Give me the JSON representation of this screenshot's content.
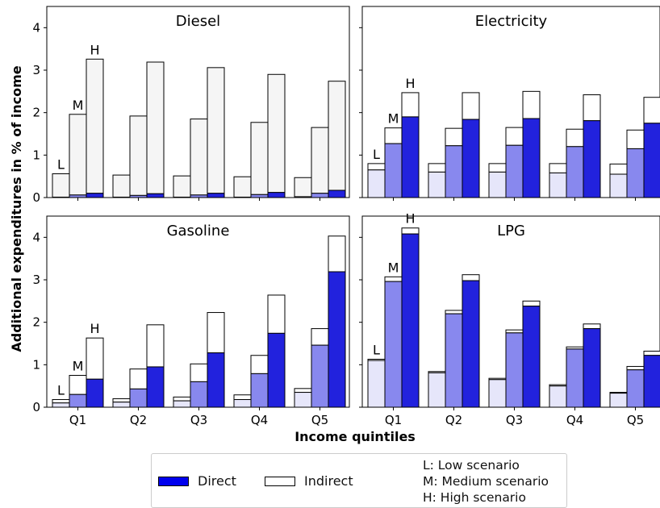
{
  "chart_data": {
    "type": "bar",
    "xlabel": "Income quintiles",
    "ylabel": "Additional expenditures in % of income",
    "categories": [
      "Q1",
      "Q2",
      "Q3",
      "Q4",
      "Q5"
    ],
    "scenarios": [
      "L",
      "M",
      "H"
    ],
    "ylim": [
      0,
      4.5
    ],
    "yticks": [
      0,
      1,
      2,
      3,
      4
    ],
    "grid": false,
    "legend_position": "bottom-center",
    "panels": [
      {
        "title": "Diesel",
        "direct": [
          [
            0.01,
            0.06,
            0.1
          ],
          [
            0.01,
            0.05,
            0.09
          ],
          [
            0.01,
            0.06,
            0.1
          ],
          [
            0.01,
            0.07,
            0.12
          ],
          [
            0.02,
            0.1,
            0.17
          ]
        ],
        "total": [
          [
            0.56,
            1.96,
            3.26
          ],
          [
            0.53,
            1.92,
            3.19
          ],
          [
            0.51,
            1.85,
            3.06
          ],
          [
            0.49,
            1.77,
            2.9
          ],
          [
            0.47,
            1.65,
            2.74
          ]
        ],
        "scenario_labels": true
      },
      {
        "title": "Electricity",
        "direct": [
          [
            0.65,
            1.27,
            1.9
          ],
          [
            0.6,
            1.22,
            1.84
          ],
          [
            0.6,
            1.23,
            1.86
          ],
          [
            0.58,
            1.2,
            1.81
          ],
          [
            0.55,
            1.15,
            1.75
          ]
        ],
        "total": [
          [
            0.8,
            1.64,
            2.47
          ],
          [
            0.8,
            1.63,
            2.47
          ],
          [
            0.8,
            1.65,
            2.5
          ],
          [
            0.8,
            1.61,
            2.42
          ],
          [
            0.79,
            1.59,
            2.36
          ]
        ],
        "scenario_labels": true
      },
      {
        "title": "Gasoline",
        "direct": [
          [
            0.1,
            0.3,
            0.66
          ],
          [
            0.12,
            0.43,
            0.95
          ],
          [
            0.15,
            0.6,
            1.28
          ],
          [
            0.18,
            0.79,
            1.74
          ],
          [
            0.35,
            1.46,
            3.19
          ]
        ],
        "total": [
          [
            0.18,
            0.75,
            1.63
          ],
          [
            0.2,
            0.9,
            1.94
          ],
          [
            0.24,
            1.02,
            2.23
          ],
          [
            0.29,
            1.22,
            2.64
          ],
          [
            0.44,
            1.85,
            4.03
          ]
        ],
        "scenario_labels": true
      },
      {
        "title": "LPG",
        "direct": [
          [
            1.1,
            2.96,
            4.08
          ],
          [
            0.81,
            2.2,
            2.98
          ],
          [
            0.65,
            1.75,
            2.38
          ],
          [
            0.5,
            1.37,
            1.85
          ],
          [
            0.33,
            0.88,
            1.22
          ]
        ],
        "total": [
          [
            1.13,
            3.07,
            4.22
          ],
          [
            0.84,
            2.28,
            3.12
          ],
          [
            0.68,
            1.82,
            2.5
          ],
          [
            0.53,
            1.42,
            1.96
          ],
          [
            0.35,
            0.96,
            1.32
          ]
        ],
        "scenario_labels": true
      }
    ],
    "colors": {
      "direct_L": "#e6e6fa",
      "direct_M": "#8888ee",
      "direct_H": "#2222dd",
      "indirect": "#ffffff",
      "indirect_diesel": "#f5f5f5",
      "edge": "#000000"
    }
  },
  "legend": {
    "direct_label": "Direct",
    "indirect_label": "Indirect",
    "direct_color": "#0000ee",
    "indirect_color": "#ffffff",
    "notes": [
      "L: Low scenario",
      "M: Medium scenario",
      "H: High scenario"
    ]
  }
}
